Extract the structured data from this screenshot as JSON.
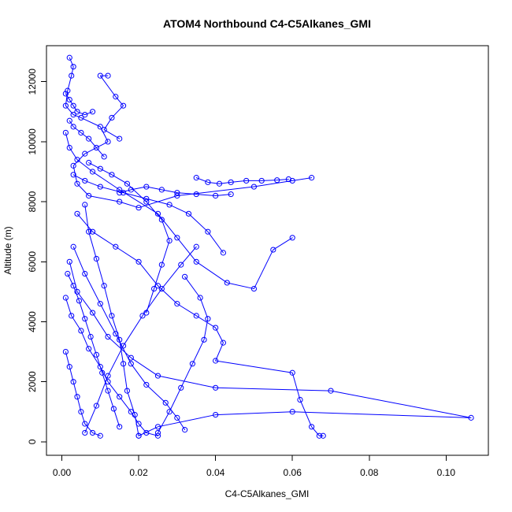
{
  "chart_data": {
    "type": "line",
    "title": "ATOM4 Northbound C4-C5Alkanes_GMI",
    "xlabel": "C4-C5Alkanes_GMI",
    "ylabel": "Altitude (m)",
    "xlim": [
      -0.004,
      0.111
    ],
    "ylim": [
      -450,
      13200
    ],
    "xticks": [
      0.0,
      0.02,
      0.04,
      0.06,
      0.08,
      0.1
    ],
    "xtick_labels": [
      "0.00",
      "0.02",
      "0.04",
      "0.06",
      "0.08",
      "0.10"
    ],
    "yticks": [
      0,
      2000,
      4000,
      6000,
      8000,
      10000,
      12000
    ],
    "ytick_labels": [
      "0",
      "2000",
      "4000",
      "6000",
      "8000",
      "10000",
      "12000"
    ],
    "grid": false,
    "legend": "none",
    "colors": {
      "series": "#0000ff",
      "axes": "#000000",
      "background": "#ffffff"
    },
    "series": [
      {
        "points": [
          {
            "x": 0.002,
            "y": 12800
          },
          {
            "x": 0.003,
            "y": 12500
          },
          {
            "x": 0.0025,
            "y": 12200
          },
          {
            "x": 0.0015,
            "y": 11700
          },
          {
            "x": 0.001,
            "y": 11200
          },
          {
            "x": 0.003,
            "y": 10900
          },
          {
            "x": 0.005,
            "y": 10800
          },
          {
            "x": 0.01,
            "y": 10500
          },
          {
            "x": 0.012,
            "y": 10000
          },
          {
            "x": 0.006,
            "y": 9600
          },
          {
            "x": 0.003,
            "y": 9200
          },
          {
            "x": 0.004,
            "y": 8600
          },
          {
            "x": 0.007,
            "y": 8200
          },
          {
            "x": 0.015,
            "y": 8000
          },
          {
            "x": 0.02,
            "y": 7800
          },
          {
            "x": 0.03,
            "y": 8200
          },
          {
            "x": 0.05,
            "y": 8500
          },
          {
            "x": 0.06,
            "y": 8700
          },
          {
            "x": 0.065,
            "y": 8800
          }
        ]
      },
      {
        "points": [
          {
            "x": 0.001,
            "y": 10300
          },
          {
            "x": 0.002,
            "y": 9800
          },
          {
            "x": 0.004,
            "y": 9400
          },
          {
            "x": 0.008,
            "y": 9000
          },
          {
            "x": 0.015,
            "y": 8400
          },
          {
            "x": 0.025,
            "y": 7600
          },
          {
            "x": 0.03,
            "y": 6800
          },
          {
            "x": 0.035,
            "y": 6000
          },
          {
            "x": 0.043,
            "y": 5300
          },
          {
            "x": 0.05,
            "y": 5100
          },
          {
            "x": 0.055,
            "y": 6400
          },
          {
            "x": 0.06,
            "y": 6800
          }
        ]
      },
      {
        "points": [
          {
            "x": 0.004,
            "y": 7600
          },
          {
            "x": 0.008,
            "y": 7000
          },
          {
            "x": 0.014,
            "y": 6500
          },
          {
            "x": 0.02,
            "y": 6000
          },
          {
            "x": 0.025,
            "y": 5200
          },
          {
            "x": 0.03,
            "y": 4600
          },
          {
            "x": 0.035,
            "y": 4200
          },
          {
            "x": 0.04,
            "y": 3800
          },
          {
            "x": 0.042,
            "y": 3300
          },
          {
            "x": 0.04,
            "y": 2700
          },
          {
            "x": 0.06,
            "y": 2300
          },
          {
            "x": 0.062,
            "y": 1400
          },
          {
            "x": 0.065,
            "y": 500
          },
          {
            "x": 0.067,
            "y": 200
          },
          {
            "x": 0.068,
            "y": 200
          }
        ]
      },
      {
        "points": [
          {
            "x": 0.002,
            "y": 6000
          },
          {
            "x": 0.004,
            "y": 5000
          },
          {
            "x": 0.008,
            "y": 4300
          },
          {
            "x": 0.012,
            "y": 3500
          },
          {
            "x": 0.018,
            "y": 2800
          },
          {
            "x": 0.025,
            "y": 2200
          },
          {
            "x": 0.04,
            "y": 1800
          },
          {
            "x": 0.07,
            "y": 1700
          },
          {
            "x": 0.1065,
            "y": 800
          },
          {
            "x": 0.06,
            "y": 1000
          },
          {
            "x": 0.04,
            "y": 900
          },
          {
            "x": 0.025,
            "y": 500
          },
          {
            "x": 0.02,
            "y": 200
          }
        ]
      },
      {
        "points": [
          {
            "x": 0.001,
            "y": 4800
          },
          {
            "x": 0.0025,
            "y": 4200
          },
          {
            "x": 0.005,
            "y": 3700
          },
          {
            "x": 0.007,
            "y": 3100
          },
          {
            "x": 0.01,
            "y": 2500
          },
          {
            "x": 0.012,
            "y": 2000
          },
          {
            "x": 0.015,
            "y": 1500
          },
          {
            "x": 0.018,
            "y": 1000
          },
          {
            "x": 0.02,
            "y": 600
          },
          {
            "x": 0.022,
            "y": 300
          },
          {
            "x": 0.025,
            "y": 200
          }
        ]
      },
      {
        "points": [
          {
            "x": 0.003,
            "y": 6500
          },
          {
            "x": 0.006,
            "y": 5600
          },
          {
            "x": 0.01,
            "y": 4600
          },
          {
            "x": 0.014,
            "y": 3600
          },
          {
            "x": 0.018,
            "y": 2600
          },
          {
            "x": 0.022,
            "y": 1900
          },
          {
            "x": 0.027,
            "y": 1300
          },
          {
            "x": 0.03,
            "y": 800
          },
          {
            "x": 0.032,
            "y": 400
          }
        ]
      },
      {
        "points": [
          {
            "x": 0.001,
            "y": 3000
          },
          {
            "x": 0.002,
            "y": 2500
          },
          {
            "x": 0.003,
            "y": 2000
          },
          {
            "x": 0.004,
            "y": 1500
          },
          {
            "x": 0.005,
            "y": 1000
          },
          {
            "x": 0.006,
            "y": 600
          },
          {
            "x": 0.008,
            "y": 300
          },
          {
            "x": 0.01,
            "y": 200
          }
        ]
      },
      {
        "points": [
          {
            "x": 0.003,
            "y": 8900
          },
          {
            "x": 0.006,
            "y": 8700
          },
          {
            "x": 0.01,
            "y": 8500
          },
          {
            "x": 0.016,
            "y": 8300
          },
          {
            "x": 0.022,
            "y": 8100
          },
          {
            "x": 0.028,
            "y": 7900
          },
          {
            "x": 0.033,
            "y": 7600
          },
          {
            "x": 0.038,
            "y": 7000
          },
          {
            "x": 0.042,
            "y": 6300
          }
        ]
      },
      {
        "points": [
          {
            "x": 0.015,
            "y": 8300
          },
          {
            "x": 0.018,
            "y": 8400
          },
          {
            "x": 0.022,
            "y": 8500
          },
          {
            "x": 0.026,
            "y": 8400
          },
          {
            "x": 0.03,
            "y": 8300
          },
          {
            "x": 0.035,
            "y": 8250
          },
          {
            "x": 0.04,
            "y": 8200
          },
          {
            "x": 0.044,
            "y": 8250
          }
        ]
      },
      {
        "points": [
          {
            "x": 0.035,
            "y": 8800
          },
          {
            "x": 0.038,
            "y": 8650
          },
          {
            "x": 0.041,
            "y": 8600
          },
          {
            "x": 0.044,
            "y": 8650
          },
          {
            "x": 0.048,
            "y": 8700
          },
          {
            "x": 0.052,
            "y": 8700
          },
          {
            "x": 0.056,
            "y": 8720
          },
          {
            "x": 0.059,
            "y": 8750
          }
        ]
      },
      {
        "points": [
          {
            "x": 0.012,
            "y": 12200
          },
          {
            "x": 0.01,
            "y": 12200
          },
          {
            "x": 0.014,
            "y": 11500
          },
          {
            "x": 0.016,
            "y": 11200
          },
          {
            "x": 0.013,
            "y": 10800
          },
          {
            "x": 0.011,
            "y": 10400
          },
          {
            "x": 0.015,
            "y": 10100
          }
        ]
      },
      {
        "points": [
          {
            "x": 0.007,
            "y": 9300
          },
          {
            "x": 0.01,
            "y": 9100
          },
          {
            "x": 0.013,
            "y": 8900
          },
          {
            "x": 0.017,
            "y": 8600
          },
          {
            "x": 0.022,
            "y": 8000
          },
          {
            "x": 0.026,
            "y": 7400
          },
          {
            "x": 0.028,
            "y": 6700
          },
          {
            "x": 0.026,
            "y": 5900
          },
          {
            "x": 0.024,
            "y": 5100
          },
          {
            "x": 0.022,
            "y": 4300
          }
        ]
      },
      {
        "points": [
          {
            "x": 0.02,
            "y": 200
          },
          {
            "x": 0.019,
            "y": 900
          },
          {
            "x": 0.017,
            "y": 1700
          },
          {
            "x": 0.016,
            "y": 2600
          },
          {
            "x": 0.015,
            "y": 3400
          },
          {
            "x": 0.013,
            "y": 4200
          },
          {
            "x": 0.011,
            "y": 5200
          },
          {
            "x": 0.009,
            "y": 6100
          },
          {
            "x": 0.007,
            "y": 7000
          },
          {
            "x": 0.006,
            "y": 7900
          }
        ]
      },
      {
        "points": [
          {
            "x": 0.025,
            "y": 300
          },
          {
            "x": 0.028,
            "y": 1000
          },
          {
            "x": 0.031,
            "y": 1800
          },
          {
            "x": 0.034,
            "y": 2600
          },
          {
            "x": 0.037,
            "y": 3400
          },
          {
            "x": 0.038,
            "y": 4100
          },
          {
            "x": 0.036,
            "y": 4800
          },
          {
            "x": 0.032,
            "y": 5500
          }
        ]
      },
      {
        "points": [
          {
            "x": 0.006,
            "y": 300
          },
          {
            "x": 0.009,
            "y": 1200
          },
          {
            "x": 0.012,
            "y": 2200
          },
          {
            "x": 0.016,
            "y": 3200
          },
          {
            "x": 0.021,
            "y": 4200
          },
          {
            "x": 0.026,
            "y": 5100
          },
          {
            "x": 0.031,
            "y": 5900
          },
          {
            "x": 0.035,
            "y": 6500
          }
        ]
      },
      {
        "points": [
          {
            "x": 0.001,
            "y": 11600
          },
          {
            "x": 0.002,
            "y": 11400
          },
          {
            "x": 0.003,
            "y": 11200
          },
          {
            "x": 0.004,
            "y": 11000
          },
          {
            "x": 0.006,
            "y": 10900
          },
          {
            "x": 0.008,
            "y": 11000
          }
        ]
      },
      {
        "points": [
          {
            "x": 0.002,
            "y": 10700
          },
          {
            "x": 0.003,
            "y": 10500
          },
          {
            "x": 0.005,
            "y": 10300
          },
          {
            "x": 0.007,
            "y": 10100
          },
          {
            "x": 0.009,
            "y": 9800
          },
          {
            "x": 0.011,
            "y": 9500
          }
        ]
      },
      {
        "points": [
          {
            "x": 0.0015,
            "y": 5600
          },
          {
            "x": 0.003,
            "y": 5200
          },
          {
            "x": 0.0045,
            "y": 4700
          },
          {
            "x": 0.006,
            "y": 4100
          },
          {
            "x": 0.0075,
            "y": 3500
          },
          {
            "x": 0.009,
            "y": 2900
          },
          {
            "x": 0.0105,
            "y": 2300
          },
          {
            "x": 0.012,
            "y": 1700
          },
          {
            "x": 0.0135,
            "y": 1100
          },
          {
            "x": 0.015,
            "y": 500
          }
        ]
      }
    ]
  }
}
